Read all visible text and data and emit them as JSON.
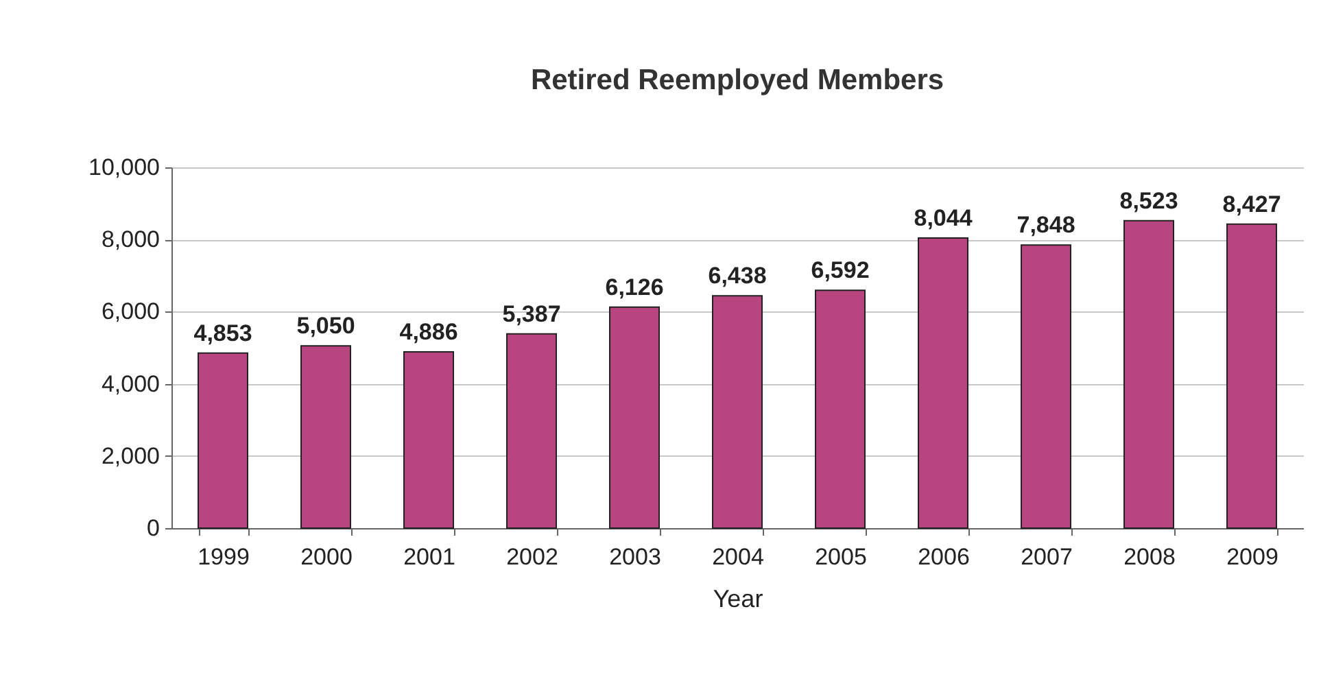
{
  "chart_data": {
    "type": "bar",
    "title": "Retired Reemployed Members",
    "xlabel": "Year",
    "categories": [
      "1999",
      "2000",
      "2001",
      "2002",
      "2003",
      "2004",
      "2005",
      "2006",
      "2007",
      "2008",
      "2009"
    ],
    "values": [
      4853,
      5050,
      4886,
      5387,
      6126,
      6438,
      6592,
      8044,
      7848,
      8523,
      8427
    ],
    "value_labels": [
      "4,853",
      "5,050",
      "4,886",
      "5,387",
      "6,126",
      "6,438",
      "6,592",
      "8,044",
      "7,848",
      "8,523",
      "8,427"
    ],
    "color": "#b8457f",
    "ylim": [
      0,
      10000
    ],
    "yticks": [
      0,
      {
        "value": 2000,
        "label": "2,000"
      },
      {
        "value": 4000,
        "label": "4,000"
      },
      {
        "value": 6000,
        "label": "6,000"
      },
      {
        "value": 8000,
        "label": "8,000"
      },
      {
        "value": 10000,
        "label": "10,000"
      }
    ],
    "grid": "y"
  }
}
